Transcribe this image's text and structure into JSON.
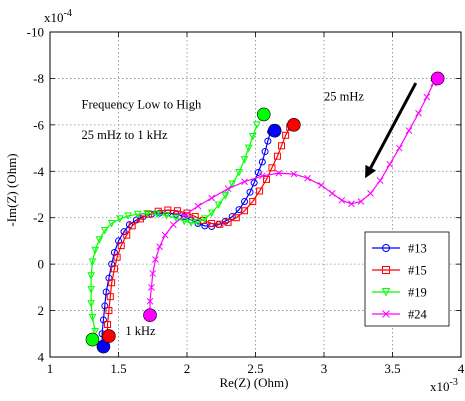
{
  "chart_data": {
    "type": "line",
    "title": "",
    "xlabel": "Re(Z) (Ohm)",
    "ylabel": "-Im(Z) (Ohm)",
    "x_multiplier": "x10",
    "x_exponent": "-3",
    "y_multiplier": "x10",
    "y_exponent": "-4",
    "xlim": [
      1,
      4
    ],
    "ylim": [
      4,
      -10
    ],
    "y_reversed": true,
    "x_ticks": [
      1,
      1.5,
      2,
      2.5,
      3,
      3.5,
      4
    ],
    "x_tick_labels": [
      "1",
      "1.5",
      "2",
      "2.5",
      "3",
      "3.5",
      "4"
    ],
    "y_ticks": [
      -10,
      -8,
      -6,
      -4,
      -2,
      0,
      2,
      4
    ],
    "y_tick_labels": [
      "-10",
      "-8",
      "-6",
      "-4",
      "-2",
      "0",
      "2",
      "4"
    ],
    "grid": true,
    "legend_position": "bottom-right",
    "annotations": [
      {
        "text": "Frequency Low to High",
        "x": 1.23,
        "y": -6.7
      },
      {
        "text": "25 mHz to 1 kHz",
        "x": 1.23,
        "y": -5.4
      },
      {
        "text": "25 mHz",
        "x": 3.0,
        "y": -7.05
      },
      {
        "text": "1 kHz",
        "x": 1.55,
        "y": 3.05
      }
    ],
    "arrow": {
      "from": [
        3.67,
        -7.8
      ],
      "to": [
        3.3,
        -3.7
      ],
      "color": "#000000"
    },
    "series": [
      {
        "name": "#13",
        "color": "#0000ff",
        "marker": "circle",
        "points": [
          [
            1.38,
            3.5
          ],
          [
            1.38,
            3.0
          ],
          [
            1.39,
            2.4
          ],
          [
            1.4,
            1.8
          ],
          [
            1.41,
            1.2
          ],
          [
            1.43,
            0.6
          ],
          [
            1.45,
            0.0
          ],
          [
            1.47,
            -0.5
          ],
          [
            1.5,
            -1.0
          ],
          [
            1.54,
            -1.4
          ],
          [
            1.58,
            -1.7
          ],
          [
            1.63,
            -1.9
          ],
          [
            1.68,
            -2.05
          ],
          [
            1.74,
            -2.15
          ],
          [
            1.8,
            -2.2
          ],
          [
            1.86,
            -2.2
          ],
          [
            1.92,
            -2.15
          ],
          [
            1.98,
            -2.05
          ],
          [
            2.03,
            -1.9
          ],
          [
            2.08,
            -1.75
          ],
          [
            2.13,
            -1.65
          ],
          [
            2.18,
            -1.62
          ],
          [
            2.23,
            -1.7
          ],
          [
            2.28,
            -1.85
          ],
          [
            2.33,
            -2.05
          ],
          [
            2.38,
            -2.35
          ],
          [
            2.42,
            -2.7
          ],
          [
            2.46,
            -3.1
          ],
          [
            2.49,
            -3.5
          ],
          [
            2.52,
            -3.95
          ],
          [
            2.55,
            -4.4
          ],
          [
            2.57,
            -4.85
          ],
          [
            2.59,
            -5.3
          ],
          [
            2.61,
            -5.7
          ]
        ],
        "endpoints": [
          [
            1.39,
            3.55
          ],
          [
            2.64,
            -5.75
          ]
        ]
      },
      {
        "name": "#15",
        "color": "#ff0000",
        "marker": "square",
        "points": [
          [
            1.42,
            3.1
          ],
          [
            1.42,
            2.6
          ],
          [
            1.43,
            2.0
          ],
          [
            1.44,
            1.4
          ],
          [
            1.45,
            0.8
          ],
          [
            1.47,
            0.2
          ],
          [
            1.49,
            -0.3
          ],
          [
            1.52,
            -0.8
          ],
          [
            1.56,
            -1.25
          ],
          [
            1.6,
            -1.65
          ],
          [
            1.66,
            -1.95
          ],
          [
            1.72,
            -2.15
          ],
          [
            1.79,
            -2.28
          ],
          [
            1.86,
            -2.33
          ],
          [
            1.93,
            -2.3
          ],
          [
            2.0,
            -2.2
          ],
          [
            2.06,
            -2.05
          ],
          [
            2.12,
            -1.88
          ],
          [
            2.18,
            -1.75
          ],
          [
            2.24,
            -1.72
          ],
          [
            2.3,
            -1.8
          ],
          [
            2.36,
            -2.0
          ],
          [
            2.42,
            -2.3
          ],
          [
            2.48,
            -2.7
          ],
          [
            2.53,
            -3.15
          ],
          [
            2.58,
            -3.65
          ],
          [
            2.62,
            -4.15
          ],
          [
            2.66,
            -4.65
          ],
          [
            2.69,
            -5.1
          ],
          [
            2.72,
            -5.55
          ],
          [
            2.75,
            -5.9
          ]
        ],
        "endpoints": [
          [
            1.43,
            3.1
          ],
          [
            2.78,
            -6.0
          ]
        ]
      },
      {
        "name": "#19",
        "color": "#00ff00",
        "marker": "triangle-down",
        "points": [
          [
            1.33,
            2.9
          ],
          [
            1.31,
            2.3
          ],
          [
            1.3,
            1.7
          ],
          [
            1.3,
            1.1
          ],
          [
            1.3,
            0.5
          ],
          [
            1.31,
            -0.1
          ],
          [
            1.33,
            -0.6
          ],
          [
            1.36,
            -1.05
          ],
          [
            1.4,
            -1.45
          ],
          [
            1.45,
            -1.75
          ],
          [
            1.51,
            -1.95
          ],
          [
            1.57,
            -2.08
          ],
          [
            1.64,
            -2.15
          ],
          [
            1.71,
            -2.18
          ],
          [
            1.78,
            -2.16
          ],
          [
            1.85,
            -2.1
          ],
          [
            1.92,
            -1.98
          ],
          [
            1.98,
            -1.85
          ],
          [
            2.03,
            -1.78
          ],
          [
            2.08,
            -1.8
          ],
          [
            2.13,
            -1.95
          ],
          [
            2.18,
            -2.2
          ],
          [
            2.23,
            -2.55
          ],
          [
            2.28,
            -2.95
          ],
          [
            2.33,
            -3.45
          ],
          [
            2.38,
            -3.95
          ],
          [
            2.42,
            -4.5
          ],
          [
            2.45,
            -5.0
          ],
          [
            2.48,
            -5.5
          ],
          [
            2.51,
            -6.0
          ]
        ],
        "endpoints": [
          [
            1.31,
            3.25
          ],
          [
            2.56,
            -6.45
          ]
        ]
      },
      {
        "name": "#24",
        "color": "#ff00ff",
        "marker": "x",
        "points": [
          [
            1.73,
            2.2
          ],
          [
            1.73,
            1.6
          ],
          [
            1.74,
            1.0
          ],
          [
            1.75,
            0.4
          ],
          [
            1.77,
            -0.2
          ],
          [
            1.8,
            -0.75
          ],
          [
            1.84,
            -1.25
          ],
          [
            1.9,
            -1.7
          ],
          [
            1.98,
            -2.1
          ],
          [
            2.08,
            -2.5
          ],
          [
            2.18,
            -2.85
          ],
          [
            2.3,
            -3.25
          ],
          [
            2.42,
            -3.55
          ],
          [
            2.55,
            -3.8
          ],
          [
            2.67,
            -3.92
          ],
          [
            2.78,
            -3.88
          ],
          [
            2.88,
            -3.7
          ],
          [
            2.98,
            -3.4
          ],
          [
            3.06,
            -3.05
          ],
          [
            3.13,
            -2.75
          ],
          [
            3.2,
            -2.6
          ],
          [
            3.27,
            -2.7
          ],
          [
            3.34,
            -3.05
          ],
          [
            3.41,
            -3.6
          ],
          [
            3.48,
            -4.3
          ],
          [
            3.55,
            -5.0
          ],
          [
            3.62,
            -5.75
          ],
          [
            3.69,
            -6.5
          ],
          [
            3.75,
            -7.2
          ],
          [
            3.8,
            -7.8
          ]
        ],
        "endpoints": [
          [
            1.73,
            2.2
          ],
          [
            3.83,
            -8.0
          ]
        ]
      }
    ]
  }
}
